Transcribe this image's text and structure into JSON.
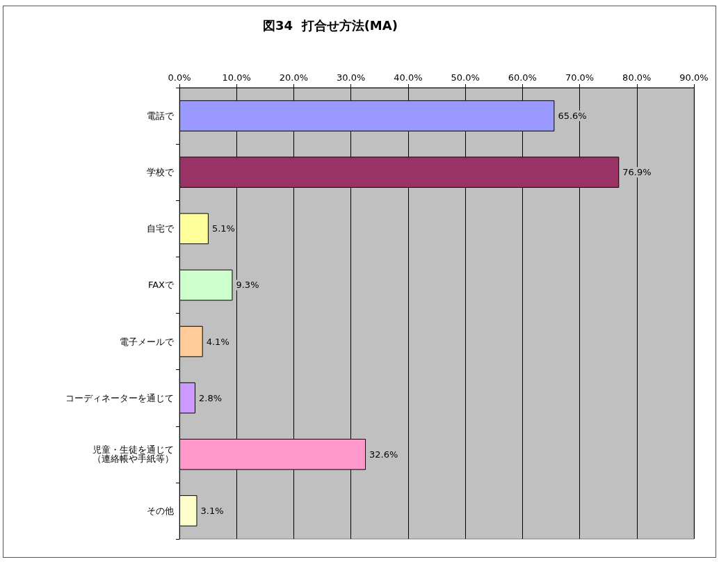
{
  "chart_data": {
    "type": "bar",
    "orientation": "horizontal",
    "title": "図34  打合せ方法(MA)",
    "categories": [
      "電話で",
      "学校で",
      "自宅で",
      "FAXで",
      "電子メールで",
      "コーディネーターを通じて",
      "児童・生徒を通じて（連絡帳や手紙等）",
      "その他"
    ],
    "values": [
      65.6,
      76.9,
      5.1,
      9.3,
      4.1,
      2.8,
      32.6,
      3.1
    ],
    "colors": [
      "#9999ff",
      "#993366",
      "#ffff99",
      "#ccffcc",
      "#ffcc99",
      "#cc99ff",
      "#ff99cc",
      "#ffffcc"
    ],
    "value_labels": [
      "65.6%",
      "76.9%",
      "5.1%",
      "9.3%",
      "4.1%",
      "2.8%",
      "32.6%",
      "3.1%"
    ],
    "xlim": [
      0,
      90
    ],
    "xticks": [
      {
        "value": 0,
        "label": "0.0%"
      },
      {
        "value": 10,
        "label": "10.0%"
      },
      {
        "value": 20,
        "label": "20.0%"
      },
      {
        "value": 30,
        "label": "30.0%"
      },
      {
        "value": 40,
        "label": "40.0%"
      },
      {
        "value": 50,
        "label": "50.0%"
      },
      {
        "value": 60,
        "label": "60.0%"
      },
      {
        "value": 70,
        "label": "70.0%"
      },
      {
        "value": 80,
        "label": "80.0%"
      },
      {
        "value": 90,
        "label": "90.0%"
      }
    ],
    "grid": "x"
  }
}
